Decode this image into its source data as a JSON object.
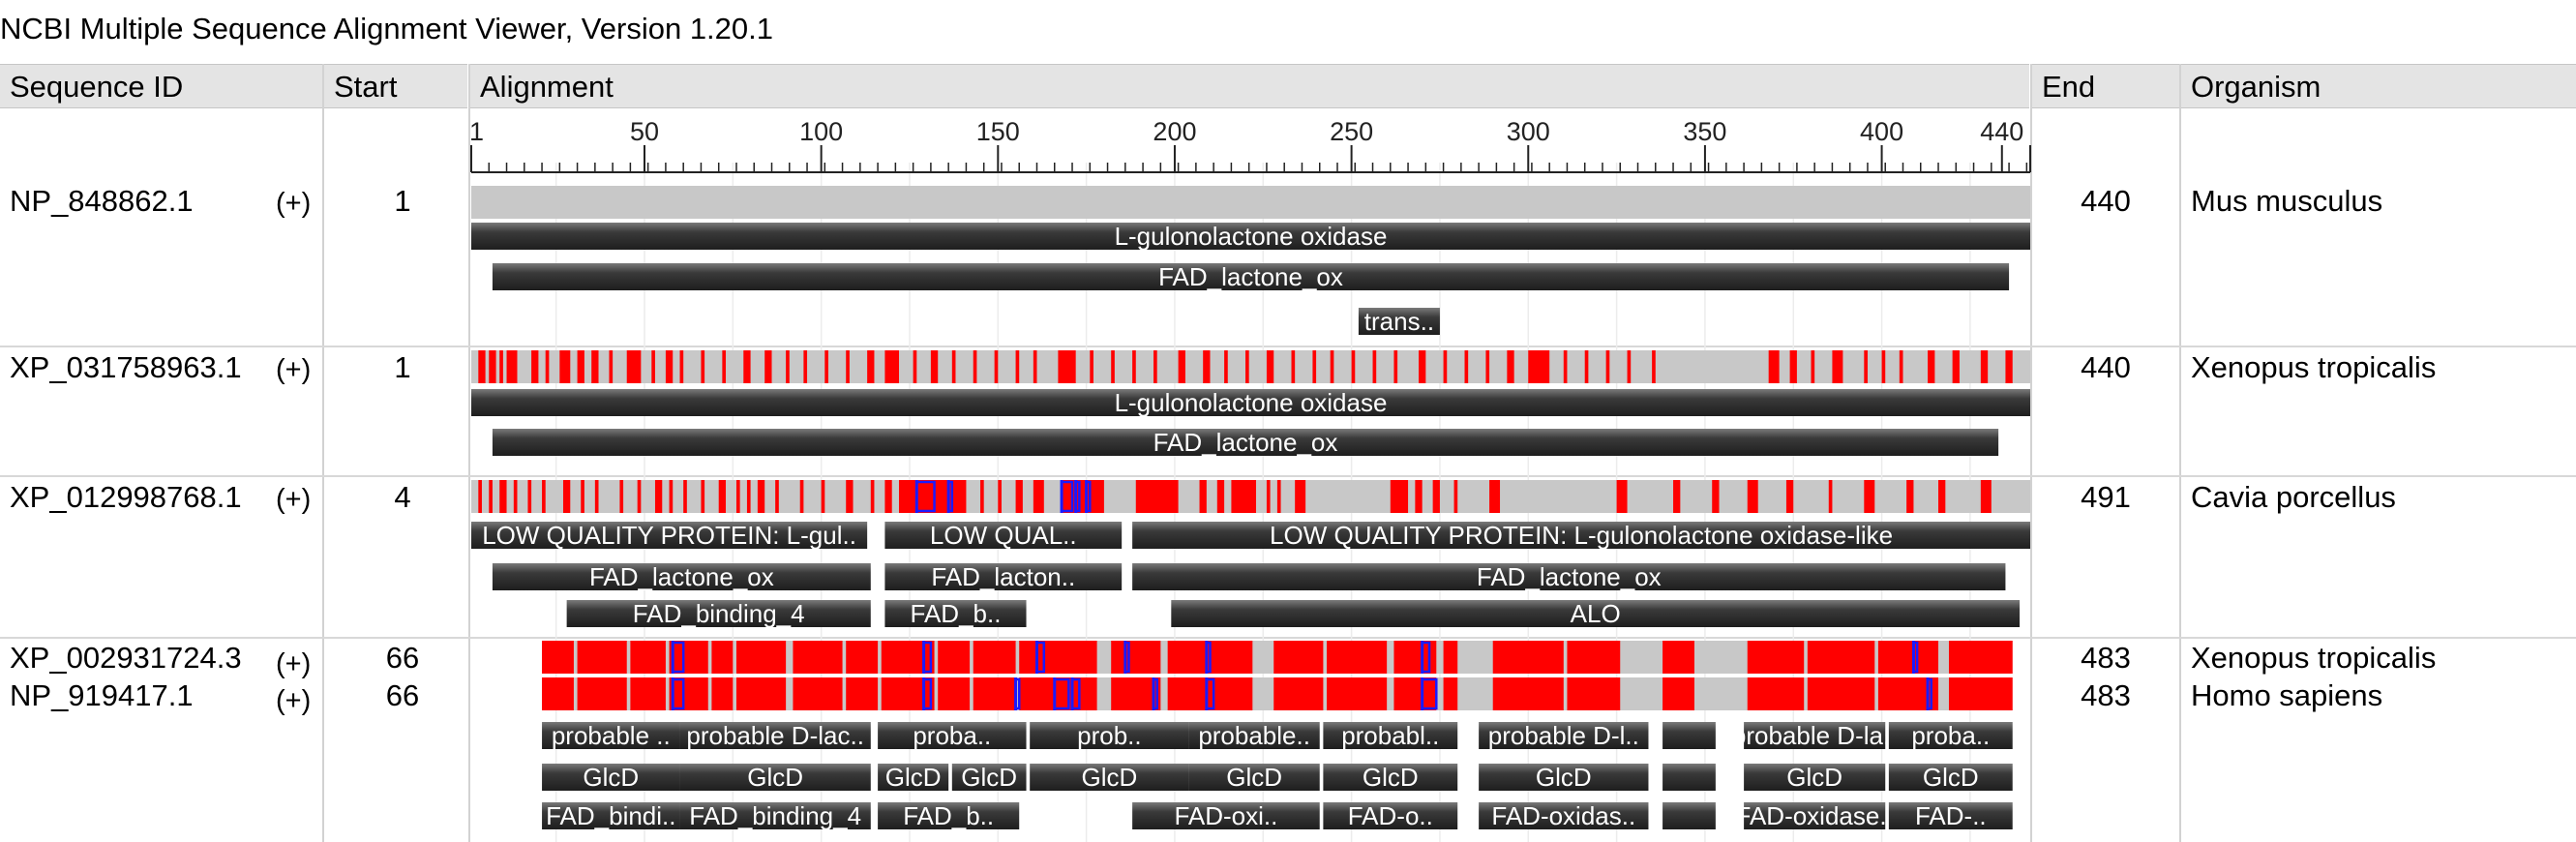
{
  "window": {
    "title": "NCBI Multiple Sequence Alignment Viewer, Version 1.20.1"
  },
  "columns": {
    "sequence_id": "Sequence ID",
    "start": "Start",
    "alignment": "Alignment",
    "end": "End",
    "organism": "Organism"
  },
  "ruler": {
    "min": 1,
    "max": 442,
    "ticks": [
      {
        "label": "1",
        "pos": 1
      },
      {
        "label": "50",
        "pos": 50
      },
      {
        "label": "100",
        "pos": 100
      },
      {
        "label": "150",
        "pos": 150
      },
      {
        "label": "200",
        "pos": 200
      },
      {
        "label": "250",
        "pos": 250
      },
      {
        "label": "300",
        "pos": 300
      },
      {
        "label": "350",
        "pos": 350
      },
      {
        "label": "400",
        "pos": 400
      },
      {
        "label": "440",
        "pos": 434
      }
    ]
  },
  "colors": {
    "match": "#c8c8c8",
    "mismatch": "#ff0000",
    "insertion": "#1a1aff",
    "feature": "#3c3c3c",
    "header": "#e4e4e4"
  },
  "rows": [
    {
      "id": "NP_848862.1",
      "strand": "(+)",
      "start": "1",
      "end": "440",
      "organism": "Mus musculus",
      "align": {
        "from": 1,
        "to": 442,
        "mismatch": [],
        "inserts": []
      },
      "features": [
        [
          {
            "label": "L-gulonolactone oxidase",
            "from": 1,
            "to": 442
          }
        ],
        [
          {
            "label": "FAD_lactone_ox",
            "from": 7,
            "to": 436
          }
        ],
        [
          {
            "label": "trans..",
            "from": 252,
            "to": 275
          }
        ]
      ]
    },
    {
      "id": "XP_031758963.1",
      "strand": "(+)",
      "start": "1",
      "end": "440",
      "organism": "Xenopus tropicalis",
      "align": {
        "from": 1,
        "to": 442,
        "mismatch": [
          [
            3,
            5
          ],
          [
            6,
            8
          ],
          [
            9,
            10
          ],
          [
            11,
            14
          ],
          [
            18,
            20
          ],
          [
            22,
            23
          ],
          [
            26,
            29
          ],
          [
            31,
            33
          ],
          [
            35,
            37
          ],
          [
            40,
            41
          ],
          [
            45,
            49
          ],
          [
            52,
            53
          ],
          [
            56,
            58
          ],
          [
            60,
            61
          ],
          [
            66,
            67
          ],
          [
            72,
            73
          ],
          [
            78,
            80
          ],
          [
            84,
            86
          ],
          [
            90,
            91
          ],
          [
            95,
            96
          ],
          [
            101,
            102
          ],
          [
            107,
            108
          ],
          [
            113,
            115
          ],
          [
            118,
            122
          ],
          [
            126,
            127
          ],
          [
            131,
            133
          ],
          [
            137,
            138
          ],
          [
            143,
            144
          ],
          [
            149,
            150
          ],
          [
            155,
            156
          ],
          [
            160,
            161
          ],
          [
            167,
            172
          ],
          [
            176,
            177
          ],
          [
            182,
            183
          ],
          [
            188,
            189
          ],
          [
            194,
            195
          ],
          [
            201,
            203
          ],
          [
            208,
            210
          ],
          [
            214,
            215
          ],
          [
            220,
            221
          ],
          [
            226,
            228
          ],
          [
            233,
            234
          ],
          [
            239,
            240
          ],
          [
            244,
            245
          ],
          [
            250,
            251
          ],
          [
            256,
            257
          ],
          [
            262,
            263
          ],
          [
            269,
            271
          ],
          [
            276,
            277
          ],
          [
            282,
            283
          ],
          [
            288,
            289
          ],
          [
            294,
            296
          ],
          [
            300,
            306
          ],
          [
            310,
            311
          ],
          [
            316,
            317
          ],
          [
            322,
            323
          ],
          [
            328,
            329
          ],
          [
            335,
            336
          ],
          [
            368,
            371
          ],
          [
            374,
            376
          ],
          [
            380,
            381
          ],
          [
            386,
            389
          ],
          [
            395,
            396
          ],
          [
            400,
            401
          ],
          [
            405,
            406
          ],
          [
            413,
            415
          ],
          [
            420,
            422
          ],
          [
            428,
            430
          ],
          [
            435,
            437
          ]
        ],
        "inserts": []
      },
      "features": [
        [
          {
            "label": "L-gulonolactone oxidase",
            "from": 1,
            "to": 442
          }
        ],
        [
          {
            "label": "FAD_lactone_ox",
            "from": 7,
            "to": 433
          }
        ]
      ]
    },
    {
      "id": "XP_012998768.1",
      "strand": "(+)",
      "start": "4",
      "end": "491",
      "organism": "Cavia porcellus",
      "align": {
        "from": 1,
        "to": 442,
        "mismatch": [
          [
            3,
            4
          ],
          [
            6,
            7
          ],
          [
            9,
            11
          ],
          [
            13,
            14
          ],
          [
            17,
            18
          ],
          [
            21,
            22
          ],
          [
            27,
            29
          ],
          [
            32,
            33
          ],
          [
            36,
            37
          ],
          [
            43,
            44
          ],
          [
            48,
            49
          ],
          [
            53,
            55
          ],
          [
            57,
            58
          ],
          [
            61,
            62
          ],
          [
            66,
            67
          ],
          [
            71,
            73
          ],
          [
            76,
            77
          ],
          [
            79,
            80
          ],
          [
            82,
            84
          ],
          [
            87,
            88
          ],
          [
            94,
            95
          ],
          [
            100,
            101
          ],
          [
            107,
            109
          ],
          [
            114,
            115
          ],
          [
            118,
            120
          ],
          [
            122,
            141
          ],
          [
            145,
            146
          ],
          [
            150,
            151
          ],
          [
            155,
            157
          ],
          [
            160,
            163
          ],
          [
            168,
            180
          ],
          [
            189,
            201
          ],
          [
            207,
            209
          ],
          [
            212,
            214
          ],
          [
            216,
            223
          ],
          [
            226,
            227
          ],
          [
            229,
            230
          ],
          [
            234,
            237
          ],
          [
            261,
            266
          ],
          [
            268,
            270
          ],
          [
            273,
            275
          ],
          [
            279,
            280
          ],
          [
            289,
            292
          ],
          [
            325,
            328
          ],
          [
            341,
            343
          ],
          [
            352,
            354
          ],
          [
            362,
            365
          ],
          [
            373,
            375
          ],
          [
            385,
            386
          ],
          [
            395,
            398
          ],
          [
            407,
            409
          ],
          [
            416,
            418
          ],
          [
            428,
            431
          ]
        ],
        "inserts": [
          [
            127,
            5
          ],
          [
            136,
            1
          ],
          [
            168,
            3
          ],
          [
            172,
            1
          ],
          [
            175,
            1
          ]
        ]
      },
      "features": [
        [
          {
            "label": "LOW QUALITY PROTEIN: L-gul..",
            "from": 1,
            "to": 113
          },
          {
            "label": "LOW QUAL..",
            "from": 118,
            "to": 185
          },
          {
            "label": "LOW QUALITY PROTEIN: L-gulonolactone oxidase-like",
            "from": 188,
            "to": 442
          }
        ],
        [
          {
            "label": "FAD_lactone_ox",
            "from": 7,
            "to": 114
          },
          {
            "label": "FAD_lacton..",
            "from": 118,
            "to": 185
          },
          {
            "label": "FAD_lactone_ox",
            "from": 188,
            "to": 435
          }
        ],
        [
          {
            "label": "FAD_binding_4",
            "from": 28,
            "to": 114
          },
          {
            "label": "FAD_b..",
            "from": 118,
            "to": 158
          },
          {
            "label": "ALO",
            "from": 199,
            "to": 439
          }
        ]
      ]
    },
    {
      "id": "XP_002931724.3",
      "strand": "(+)",
      "start": "66",
      "end": "483",
      "organism": "Xenopus tropicalis",
      "align": {
        "from": 21,
        "to": 437,
        "mismatch": [
          [
            21,
            30
          ],
          [
            31,
            45
          ],
          [
            46,
            56
          ],
          [
            57,
            68
          ],
          [
            69,
            75
          ],
          [
            76,
            90
          ],
          [
            92,
            106
          ],
          [
            107,
            116
          ],
          [
            117,
            132
          ],
          [
            133,
            142
          ],
          [
            143,
            155
          ],
          [
            156,
            178
          ],
          [
            182,
            196
          ],
          [
            198,
            222
          ],
          [
            228,
            242
          ],
          [
            243,
            260
          ],
          [
            262,
            274
          ],
          [
            276,
            280
          ],
          [
            290,
            310
          ],
          [
            311,
            326
          ],
          [
            338,
            347
          ],
          [
            362,
            378
          ],
          [
            379,
            398
          ],
          [
            399,
            416
          ],
          [
            419,
            437
          ]
        ],
        "inserts": [
          [
            58,
            3
          ],
          [
            129,
            2
          ],
          [
            161,
            2
          ],
          [
            186,
            1
          ],
          [
            209,
            1
          ],
          [
            270,
            2
          ],
          [
            409,
            1
          ]
        ]
      }
    },
    {
      "id": "NP_919417.1",
      "strand": "(+)",
      "start": "66",
      "end": "483",
      "organism": "Homo sapiens",
      "align": {
        "from": 21,
        "to": 437,
        "mismatch": [
          [
            21,
            30
          ],
          [
            31,
            45
          ],
          [
            46,
            56
          ],
          [
            57,
            68
          ],
          [
            69,
            75
          ],
          [
            76,
            90
          ],
          [
            92,
            106
          ],
          [
            107,
            116
          ],
          [
            117,
            132
          ],
          [
            133,
            142
          ],
          [
            143,
            155
          ],
          [
            156,
            178
          ],
          [
            182,
            196
          ],
          [
            198,
            222
          ],
          [
            228,
            242
          ],
          [
            243,
            260
          ],
          [
            262,
            274
          ],
          [
            276,
            280
          ],
          [
            290,
            310
          ],
          [
            311,
            326
          ],
          [
            338,
            347
          ],
          [
            362,
            378
          ],
          [
            379,
            398
          ],
          [
            399,
            416
          ],
          [
            419,
            437
          ]
        ],
        "inserts": [
          [
            58,
            3
          ],
          [
            129,
            2
          ],
          [
            155,
            1
          ],
          [
            166,
            4
          ],
          [
            171,
            2
          ],
          [
            194,
            1
          ],
          [
            209,
            2
          ],
          [
            270,
            4
          ],
          [
            413,
            1
          ]
        ]
      },
      "features": [
        [
          {
            "label": "probable ..",
            "from": 21,
            "to": 60
          },
          {
            "label": "probable D-lac..",
            "from": 60,
            "to": 114
          },
          {
            "label": "proba..",
            "from": 116,
            "to": 158
          },
          {
            "label": "prob..",
            "from": 159,
            "to": 204
          },
          {
            "label": "probable..",
            "from": 204,
            "to": 241
          },
          {
            "label": "probabl..",
            "from": 242,
            "to": 280
          },
          {
            "label": "probable D-l..",
            "from": 286,
            "to": 334
          },
          {
            "label": "",
            "from": 338,
            "to": 353
          },
          {
            "label": "probable D-la..",
            "from": 361,
            "to": 401
          },
          {
            "label": "proba..",
            "from": 402,
            "to": 437
          }
        ],
        [
          {
            "label": "GlcD",
            "from": 21,
            "to": 60
          },
          {
            "label": "GlcD",
            "from": 60,
            "to": 114
          },
          {
            "label": "GlcD",
            "from": 116,
            "to": 136
          },
          {
            "label": "GlcD",
            "from": 137,
            "to": 158
          },
          {
            "label": "GlcD",
            "from": 159,
            "to": 204
          },
          {
            "label": "GlcD",
            "from": 204,
            "to": 241
          },
          {
            "label": "GlcD",
            "from": 242,
            "to": 280
          },
          {
            "label": "GlcD",
            "from": 286,
            "to": 334
          },
          {
            "label": "",
            "from": 338,
            "to": 353
          },
          {
            "label": "GlcD",
            "from": 361,
            "to": 401
          },
          {
            "label": "GlcD",
            "from": 402,
            "to": 437
          }
        ],
        [
          {
            "label": "FAD_bindi..",
            "from": 21,
            "to": 60
          },
          {
            "label": "FAD_binding_4",
            "from": 60,
            "to": 114
          },
          {
            "label": "FAD_b..",
            "from": 116,
            "to": 156
          },
          {
            "label": "FAD-oxi..",
            "from": 188,
            "to": 241
          },
          {
            "label": "FAD-o..",
            "from": 242,
            "to": 280
          },
          {
            "label": "FAD-oxidas..",
            "from": 286,
            "to": 334
          },
          {
            "label": "",
            "from": 338,
            "to": 353
          },
          {
            "label": "FAD-oxidase..",
            "from": 361,
            "to": 401
          },
          {
            "label": "FAD-..",
            "from": 402,
            "to": 437
          }
        ]
      ]
    }
  ]
}
